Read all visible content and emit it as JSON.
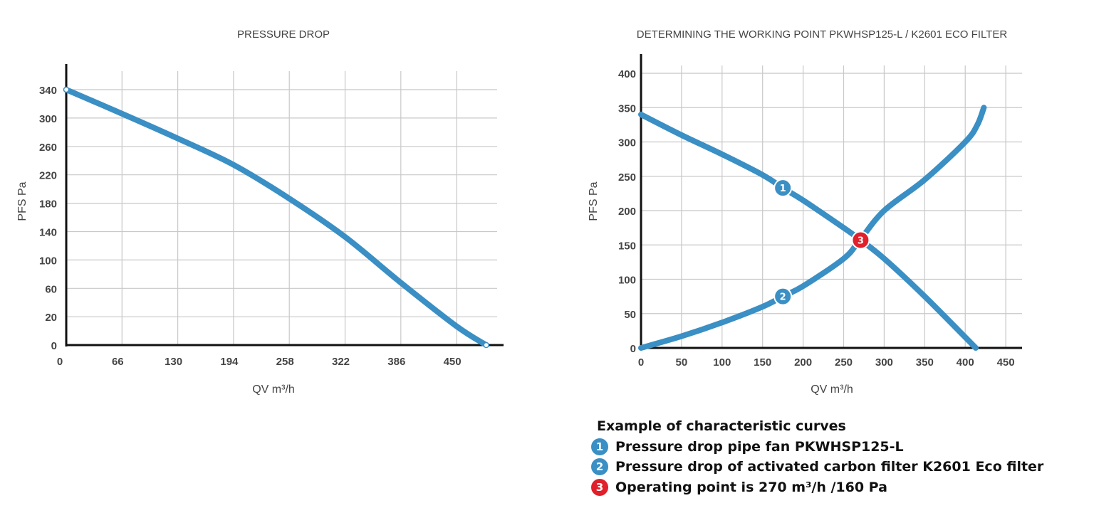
{
  "chart_data": [
    {
      "type": "line",
      "title": "PRESSURE DROP",
      "xlabel": "QV m³/h",
      "ylabel": "PFS Pa",
      "x_ticks": [
        "0",
        "66",
        "130",
        "194",
        "258",
        "322",
        "386",
        "450"
      ],
      "y_ticks": [
        "340",
        "300",
        "260",
        "220",
        "180",
        "140",
        "100",
        "60",
        "20",
        "0"
      ],
      "grid": true,
      "series": [
        {
          "color": "#3a8fc4",
          "x": [
            0,
            64,
            128,
            192,
            256,
            320,
            384,
            448,
            482
          ],
          "y": [
            340,
            308,
            275,
            240,
            195,
            144,
            83,
            25,
            0
          ]
        }
      ]
    },
    {
      "type": "line",
      "title": "DETERMINING THE WORKING POINT PKWHSP125-L / K2601 ECO FILTER",
      "xlabel": "QV m³/h",
      "ylabel": "PFS Pa",
      "x_ticks": [
        "0",
        "50",
        "100",
        "150",
        "200",
        "250",
        "300",
        "350",
        "400",
        "450"
      ],
      "y_ticks": [
        "0",
        "50",
        "100",
        "150",
        "200",
        "250",
        "300",
        "350",
        "400"
      ],
      "xlim": [
        0,
        470
      ],
      "ylim": [
        0,
        420
      ],
      "grid": true,
      "series": [
        {
          "label": "1",
          "color": "#3a8fc4",
          "x": [
            0,
            50,
            100,
            150,
            175,
            200,
            250,
            270,
            300,
            350,
            413
          ],
          "y": [
            340,
            310,
            282,
            252,
            233,
            215,
            175,
            158,
            130,
            75,
            0
          ]
        },
        {
          "label": "2",
          "color": "#3a8fc4",
          "x": [
            0,
            50,
            100,
            150,
            175,
            200,
            250,
            270,
            300,
            350,
            400,
            415,
            423
          ],
          "y": [
            0,
            17,
            37,
            60,
            75,
            90,
            130,
            157,
            200,
            245,
            300,
            325,
            350
          ]
        }
      ],
      "annotations": [
        {
          "label": "1",
          "x": 175,
          "y": 233,
          "color": "#3a8fc4"
        },
        {
          "label": "2",
          "x": 175,
          "y": 75,
          "color": "#3a8fc4"
        },
        {
          "label": "3",
          "x": 271,
          "y": 157,
          "color": "#e0202a"
        }
      ]
    }
  ],
  "legend": {
    "title": "Example of characteristic curves",
    "items": [
      {
        "num": "1",
        "text": "Pressure drop pipe fan PKWHSP125-L",
        "color": "#3a8fc4"
      },
      {
        "num": "2",
        "text": "Pressure drop of activated carbon filter K2601 Eco filter",
        "color": "#3a8fc4"
      },
      {
        "num": "3",
        "text": "Operating point is 270 m³/h /160 Pa",
        "color": "#e0202a"
      }
    ]
  }
}
